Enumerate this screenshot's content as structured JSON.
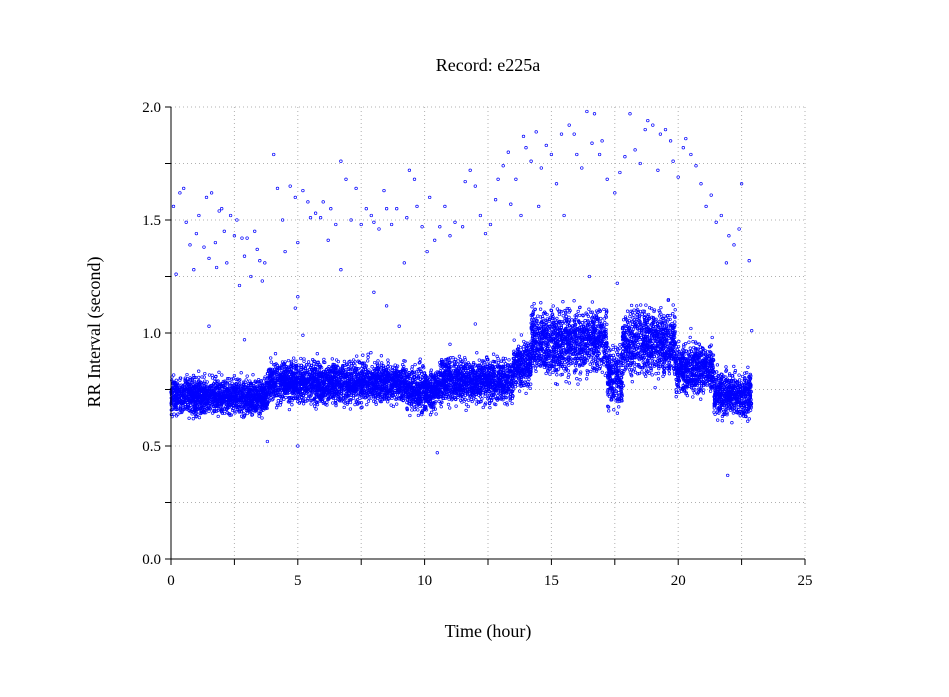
{
  "chart_data": {
    "type": "scatter",
    "title": "Record:  e225a",
    "xlabel": "Time (hour)",
    "ylabel": "RR Interval (second)",
    "xlim": [
      0,
      25
    ],
    "ylim": [
      0.0,
      2.0
    ],
    "x_ticks": [
      "0",
      "5",
      "10",
      "15",
      "20",
      "25"
    ],
    "y_ticks": [
      "0.0",
      "0.5",
      "1.0",
      "1.5",
      "2.0"
    ],
    "grid": true,
    "marker_color": "#0000ff",
    "band_segments": [
      {
        "x_start": 0.0,
        "x_end": 3.8,
        "y_low": 0.62,
        "y_high": 0.82,
        "y_center": 0.73
      },
      {
        "x_start": 3.8,
        "x_end": 9.3,
        "y_low": 0.66,
        "y_high": 0.9,
        "y_center": 0.78
      },
      {
        "x_start": 9.3,
        "x_end": 10.6,
        "y_low": 0.62,
        "y_high": 0.88,
        "y_center": 0.75
      },
      {
        "x_start": 10.6,
        "x_end": 13.5,
        "y_low": 0.66,
        "y_high": 0.92,
        "y_center": 0.8
      },
      {
        "x_start": 13.5,
        "x_end": 14.2,
        "y_low": 0.72,
        "y_high": 1.0,
        "y_center": 0.86
      },
      {
        "x_start": 14.2,
        "x_end": 17.2,
        "y_low": 0.76,
        "y_high": 1.16,
        "y_center": 0.95
      },
      {
        "x_start": 17.2,
        "x_end": 17.8,
        "y_low": 0.62,
        "y_high": 1.0,
        "y_center": 0.8
      },
      {
        "x_start": 17.8,
        "x_end": 19.9,
        "y_low": 0.76,
        "y_high": 1.16,
        "y_center": 0.95
      },
      {
        "x_start": 19.9,
        "x_end": 21.4,
        "y_low": 0.7,
        "y_high": 0.98,
        "y_center": 0.84
      },
      {
        "x_start": 21.4,
        "x_end": 22.9,
        "y_low": 0.6,
        "y_high": 0.86,
        "y_center": 0.72
      }
    ],
    "high_points": [
      [
        0.1,
        1.56
      ],
      [
        0.2,
        1.26
      ],
      [
        0.35,
        1.62
      ],
      [
        0.5,
        1.64
      ],
      [
        0.6,
        1.49
      ],
      [
        0.75,
        1.39
      ],
      [
        0.9,
        1.28
      ],
      [
        1.0,
        1.44
      ],
      [
        1.1,
        1.52
      ],
      [
        1.3,
        1.38
      ],
      [
        1.4,
        1.6
      ],
      [
        1.5,
        1.33
      ],
      [
        1.6,
        1.62
      ],
      [
        1.75,
        1.4
      ],
      [
        1.8,
        1.29
      ],
      [
        1.9,
        1.54
      ],
      [
        2.0,
        1.55
      ],
      [
        2.1,
        1.45
      ],
      [
        2.2,
        1.31
      ],
      [
        2.35,
        1.52
      ],
      [
        2.5,
        1.43
      ],
      [
        2.6,
        1.5
      ],
      [
        2.7,
        1.21
      ],
      [
        2.8,
        1.42
      ],
      [
        2.9,
        1.34
      ],
      [
        3.0,
        1.42
      ],
      [
        3.15,
        1.25
      ],
      [
        3.3,
        1.45
      ],
      [
        3.4,
        1.37
      ],
      [
        3.5,
        1.32
      ],
      [
        3.6,
        1.23
      ],
      [
        3.7,
        1.31
      ],
      [
        4.05,
        1.79
      ],
      [
        4.2,
        1.64
      ],
      [
        4.4,
        1.5
      ],
      [
        4.5,
        1.36
      ],
      [
        4.7,
        1.65
      ],
      [
        4.9,
        1.6
      ],
      [
        5.0,
        1.4
      ],
      [
        5.2,
        1.63
      ],
      [
        5.4,
        1.58
      ],
      [
        5.5,
        1.51
      ],
      [
        5.7,
        1.53
      ],
      [
        5.9,
        1.51
      ],
      [
        6.0,
        1.58
      ],
      [
        6.2,
        1.41
      ],
      [
        6.3,
        1.55
      ],
      [
        6.5,
        1.48
      ],
      [
        6.7,
        1.28
      ],
      [
        6.7,
        1.76
      ],
      [
        6.9,
        1.68
      ],
      [
        7.1,
        1.5
      ],
      [
        7.3,
        1.64
      ],
      [
        7.5,
        1.48
      ],
      [
        7.7,
        1.55
      ],
      [
        7.9,
        1.52
      ],
      [
        8.0,
        1.49
      ],
      [
        8.2,
        1.46
      ],
      [
        8.4,
        1.63
      ],
      [
        8.5,
        1.55
      ],
      [
        8.7,
        1.48
      ],
      [
        8.9,
        1.55
      ],
      [
        9.2,
        1.31
      ],
      [
        9.3,
        1.51
      ],
      [
        9.4,
        1.72
      ],
      [
        9.6,
        1.68
      ],
      [
        9.7,
        1.56
      ],
      [
        9.9,
        1.47
      ],
      [
        10.1,
        1.36
      ],
      [
        10.2,
        1.6
      ],
      [
        10.4,
        1.41
      ],
      [
        10.6,
        1.47
      ],
      [
        10.8,
        1.56
      ],
      [
        11.0,
        1.43
      ],
      [
        11.2,
        1.49
      ],
      [
        11.5,
        1.47
      ],
      [
        11.6,
        1.67
      ],
      [
        11.8,
        1.72
      ],
      [
        12.0,
        1.65
      ],
      [
        12.2,
        1.52
      ],
      [
        12.4,
        1.44
      ],
      [
        12.6,
        1.48
      ],
      [
        12.8,
        1.59
      ],
      [
        12.9,
        1.68
      ],
      [
        13.1,
        1.74
      ],
      [
        13.3,
        1.8
      ],
      [
        13.4,
        1.57
      ],
      [
        13.6,
        1.68
      ],
      [
        13.8,
        1.52
      ],
      [
        13.9,
        1.87
      ],
      [
        14.0,
        1.82
      ],
      [
        14.2,
        1.76
      ],
      [
        14.4,
        1.89
      ],
      [
        14.5,
        1.56
      ],
      [
        14.6,
        1.73
      ],
      [
        14.8,
        1.83
      ],
      [
        15.0,
        1.79
      ],
      [
        15.2,
        1.66
      ],
      [
        15.4,
        1.88
      ],
      [
        15.5,
        1.52
      ],
      [
        15.7,
        1.92
      ],
      [
        15.9,
        1.88
      ],
      [
        16.0,
        1.79
      ],
      [
        16.2,
        1.73
      ],
      [
        16.4,
        1.98
      ],
      [
        16.6,
        1.84
      ],
      [
        16.7,
        1.97
      ],
      [
        16.9,
        1.79
      ],
      [
        17.0,
        1.85
      ],
      [
        17.2,
        1.68
      ],
      [
        17.5,
        1.62
      ],
      [
        17.7,
        1.71
      ],
      [
        17.9,
        1.78
      ],
      [
        18.1,
        1.97
      ],
      [
        18.3,
        1.81
      ],
      [
        18.5,
        1.75
      ],
      [
        18.7,
        1.9
      ],
      [
        18.8,
        1.94
      ],
      [
        19.0,
        1.92
      ],
      [
        19.2,
        1.72
      ],
      [
        19.3,
        1.88
      ],
      [
        19.5,
        1.9
      ],
      [
        19.7,
        1.85
      ],
      [
        19.8,
        1.76
      ],
      [
        20.0,
        1.69
      ],
      [
        20.2,
        1.82
      ],
      [
        20.3,
        1.86
      ],
      [
        20.5,
        1.79
      ],
      [
        20.7,
        1.74
      ],
      [
        20.9,
        1.66
      ],
      [
        21.1,
        1.56
      ],
      [
        21.3,
        1.61
      ],
      [
        21.5,
        1.49
      ],
      [
        21.7,
        1.52
      ],
      [
        21.9,
        1.31
      ],
      [
        22.0,
        1.43
      ],
      [
        22.2,
        1.39
      ],
      [
        22.4,
        1.46
      ],
      [
        22.5,
        1.66
      ],
      [
        22.8,
        1.32
      ],
      [
        22.9,
        1.01
      ],
      [
        4.9,
        1.11
      ],
      [
        5.0,
        1.16
      ],
      [
        5.2,
        0.99
      ],
      [
        9.0,
        1.03
      ],
      [
        11.0,
        0.95
      ],
      [
        12.0,
        1.04
      ],
      [
        16.5,
        1.25
      ],
      [
        17.6,
        1.22
      ],
      [
        20.5,
        1.02
      ],
      [
        1.5,
        1.03
      ],
      [
        2.9,
        0.97
      ],
      [
        8.0,
        1.18
      ],
      [
        8.5,
        1.12
      ]
    ],
    "low_points": [
      [
        21.95,
        0.37
      ],
      [
        10.5,
        0.47
      ],
      [
        5.0,
        0.5
      ],
      [
        3.8,
        0.52
      ]
    ]
  }
}
